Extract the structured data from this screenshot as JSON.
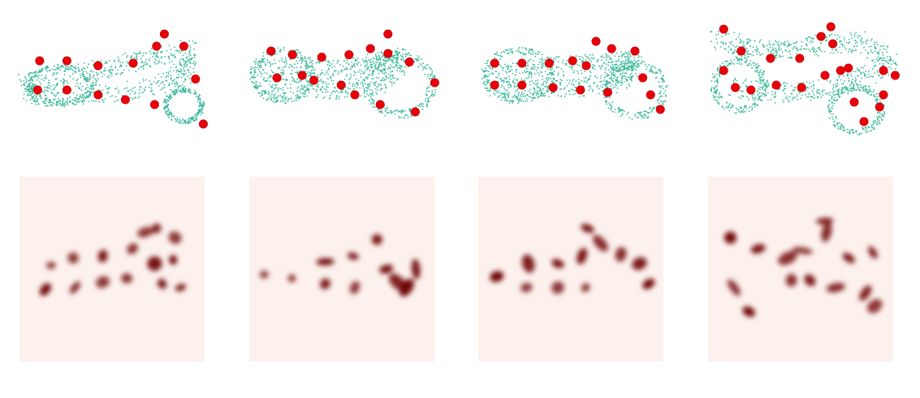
{
  "figure": {
    "colors": {
      "point_cloud": "#3bb89a",
      "keypoint": "#e8000b",
      "keypoint_edge": "#b30000",
      "heatmap_bg": "#fdf1ed",
      "heatmap_ink": "#6b0000"
    },
    "panels": [
      {
        "id": "motorbike-1",
        "body": [
          [
            0.05,
            0.55
          ],
          [
            0.18,
            0.52
          ],
          [
            0.35,
            0.48
          ],
          [
            0.55,
            0.42
          ],
          [
            0.72,
            0.35
          ],
          [
            0.88,
            0.28
          ],
          [
            0.88,
            0.45
          ],
          [
            0.8,
            0.55
          ],
          [
            0.6,
            0.62
          ],
          [
            0.4,
            0.66
          ],
          [
            0.2,
            0.68
          ],
          [
            0.08,
            0.66
          ],
          [
            0.05,
            0.55
          ]
        ],
        "wheels": [
          [
            0.22,
            0.58,
            0.18,
            0.16
          ],
          [
            0.86,
            0.75,
            0.1,
            0.14
          ]
        ],
        "keypoints": [
          [
            0.12,
            0.38
          ],
          [
            0.26,
            0.38
          ],
          [
            0.42,
            0.42
          ],
          [
            0.6,
            0.4
          ],
          [
            0.72,
            0.26
          ],
          [
            0.76,
            0.16
          ],
          [
            0.86,
            0.26
          ],
          [
            0.92,
            0.53
          ],
          [
            0.11,
            0.62
          ],
          [
            0.26,
            0.62
          ],
          [
            0.42,
            0.66
          ],
          [
            0.56,
            0.7
          ],
          [
            0.71,
            0.74
          ],
          [
            0.96,
            0.9
          ]
        ],
        "heat": [
          [
            0.17,
            0.48
          ],
          [
            0.29,
            0.44
          ],
          [
            0.45,
            0.43
          ],
          [
            0.61,
            0.39
          ],
          [
            0.68,
            0.3
          ],
          [
            0.74,
            0.28
          ],
          [
            0.84,
            0.33
          ],
          [
            0.14,
            0.61
          ],
          [
            0.3,
            0.6
          ],
          [
            0.45,
            0.57
          ],
          [
            0.58,
            0.55
          ],
          [
            0.73,
            0.47
          ],
          [
            0.77,
            0.58
          ],
          [
            0.83,
            0.45
          ],
          [
            0.87,
            0.6
          ]
        ]
      },
      {
        "id": "motorbike-2",
        "body": [
          [
            0.05,
            0.45
          ],
          [
            0.25,
            0.42
          ],
          [
            0.45,
            0.45
          ],
          [
            0.65,
            0.4
          ],
          [
            0.8,
            0.35
          ],
          [
            0.7,
            0.55
          ],
          [
            0.5,
            0.62
          ],
          [
            0.3,
            0.6
          ],
          [
            0.08,
            0.58
          ]
        ],
        "wheels": [
          [
            0.18,
            0.5,
            0.16,
            0.22
          ],
          [
            0.78,
            0.58,
            0.18,
            0.26
          ]
        ],
        "keypoints": [
          [
            0.12,
            0.3
          ],
          [
            0.23,
            0.33
          ],
          [
            0.38,
            0.35
          ],
          [
            0.52,
            0.33
          ],
          [
            0.63,
            0.28
          ],
          [
            0.72,
            0.16
          ],
          [
            0.72,
            0.32
          ],
          [
            0.83,
            0.39
          ],
          [
            0.96,
            0.56
          ],
          [
            0.15,
            0.52
          ],
          [
            0.28,
            0.5
          ],
          [
            0.34,
            0.54
          ],
          [
            0.48,
            0.58
          ],
          [
            0.55,
            0.66
          ],
          [
            0.68,
            0.74
          ],
          [
            0.86,
            0.8
          ]
        ],
        "heat": [
          [
            0.08,
            0.53
          ],
          [
            0.23,
            0.55
          ],
          [
            0.41,
            0.46
          ],
          [
            0.41,
            0.58
          ],
          [
            0.56,
            0.43
          ],
          [
            0.57,
            0.6
          ],
          [
            0.69,
            0.34
          ],
          [
            0.74,
            0.5
          ],
          [
            0.8,
            0.57
          ],
          [
            0.9,
            0.5
          ],
          [
            0.85,
            0.6
          ]
        ]
      },
      {
        "id": "motorbike-3",
        "body": [
          [
            0.05,
            0.5
          ],
          [
            0.25,
            0.45
          ],
          [
            0.45,
            0.42
          ],
          [
            0.65,
            0.4
          ],
          [
            0.8,
            0.38
          ],
          [
            0.72,
            0.55
          ],
          [
            0.5,
            0.6
          ],
          [
            0.28,
            0.62
          ],
          [
            0.08,
            0.6
          ]
        ],
        "wheels": [
          [
            0.2,
            0.5,
            0.18,
            0.22
          ],
          [
            0.8,
            0.62,
            0.16,
            0.24
          ]
        ],
        "keypoints": [
          [
            0.08,
            0.4
          ],
          [
            0.22,
            0.4
          ],
          [
            0.36,
            0.4
          ],
          [
            0.48,
            0.38
          ],
          [
            0.55,
            0.42
          ],
          [
            0.6,
            0.22
          ],
          [
            0.68,
            0.28
          ],
          [
            0.8,
            0.3
          ],
          [
            0.84,
            0.52
          ],
          [
            0.08,
            0.58
          ],
          [
            0.22,
            0.58
          ],
          [
            0.38,
            0.6
          ],
          [
            0.52,
            0.62
          ],
          [
            0.66,
            0.64
          ],
          [
            0.88,
            0.66
          ],
          [
            0.93,
            0.78
          ]
        ],
        "heat": [
          [
            0.1,
            0.54
          ],
          [
            0.27,
            0.47
          ],
          [
            0.26,
            0.6
          ],
          [
            0.43,
            0.47
          ],
          [
            0.43,
            0.6
          ],
          [
            0.56,
            0.43
          ],
          [
            0.58,
            0.6
          ],
          [
            0.59,
            0.28
          ],
          [
            0.66,
            0.36
          ],
          [
            0.77,
            0.42
          ],
          [
            0.87,
            0.47
          ],
          [
            0.92,
            0.58
          ]
        ]
      },
      {
        "id": "motorbike-4",
        "body": [
          [
            0.04,
            0.2
          ],
          [
            0.22,
            0.28
          ],
          [
            0.4,
            0.3
          ],
          [
            0.58,
            0.25
          ],
          [
            0.8,
            0.22
          ],
          [
            0.94,
            0.4
          ],
          [
            0.75,
            0.55
          ],
          [
            0.55,
            0.62
          ],
          [
            0.35,
            0.65
          ],
          [
            0.12,
            0.6
          ]
        ],
        "wheels": [
          [
            0.16,
            0.58,
            0.14,
            0.22
          ],
          [
            0.76,
            0.78,
            0.14,
            0.2
          ]
        ],
        "keypoints": [
          [
            0.08,
            0.12
          ],
          [
            0.17,
            0.3
          ],
          [
            0.32,
            0.36
          ],
          [
            0.47,
            0.36
          ],
          [
            0.58,
            0.18
          ],
          [
            0.63,
            0.1
          ],
          [
            0.64,
            0.24
          ],
          [
            0.72,
            0.44
          ],
          [
            0.9,
            0.46
          ],
          [
            0.96,
            0.5
          ],
          [
            0.08,
            0.46
          ],
          [
            0.14,
            0.6
          ],
          [
            0.22,
            0.62
          ],
          [
            0.35,
            0.58
          ],
          [
            0.48,
            0.6
          ],
          [
            0.6,
            0.5
          ],
          [
            0.68,
            0.46
          ],
          [
            0.75,
            0.72
          ],
          [
            0.8,
            0.88
          ],
          [
            0.88,
            0.76
          ],
          [
            0.9,
            0.66
          ]
        ],
        "heat": [
          [
            0.12,
            0.33
          ],
          [
            0.27,
            0.39
          ],
          [
            0.43,
            0.44
          ],
          [
            0.51,
            0.4
          ],
          [
            0.63,
            0.24
          ],
          [
            0.64,
            0.3
          ],
          [
            0.76,
            0.44
          ],
          [
            0.89,
            0.41
          ],
          [
            0.14,
            0.6
          ],
          [
            0.22,
            0.73
          ],
          [
            0.45,
            0.56
          ],
          [
            0.55,
            0.56
          ],
          [
            0.69,
            0.6
          ],
          [
            0.85,
            0.63
          ],
          [
            0.9,
            0.7
          ]
        ]
      }
    ]
  }
}
